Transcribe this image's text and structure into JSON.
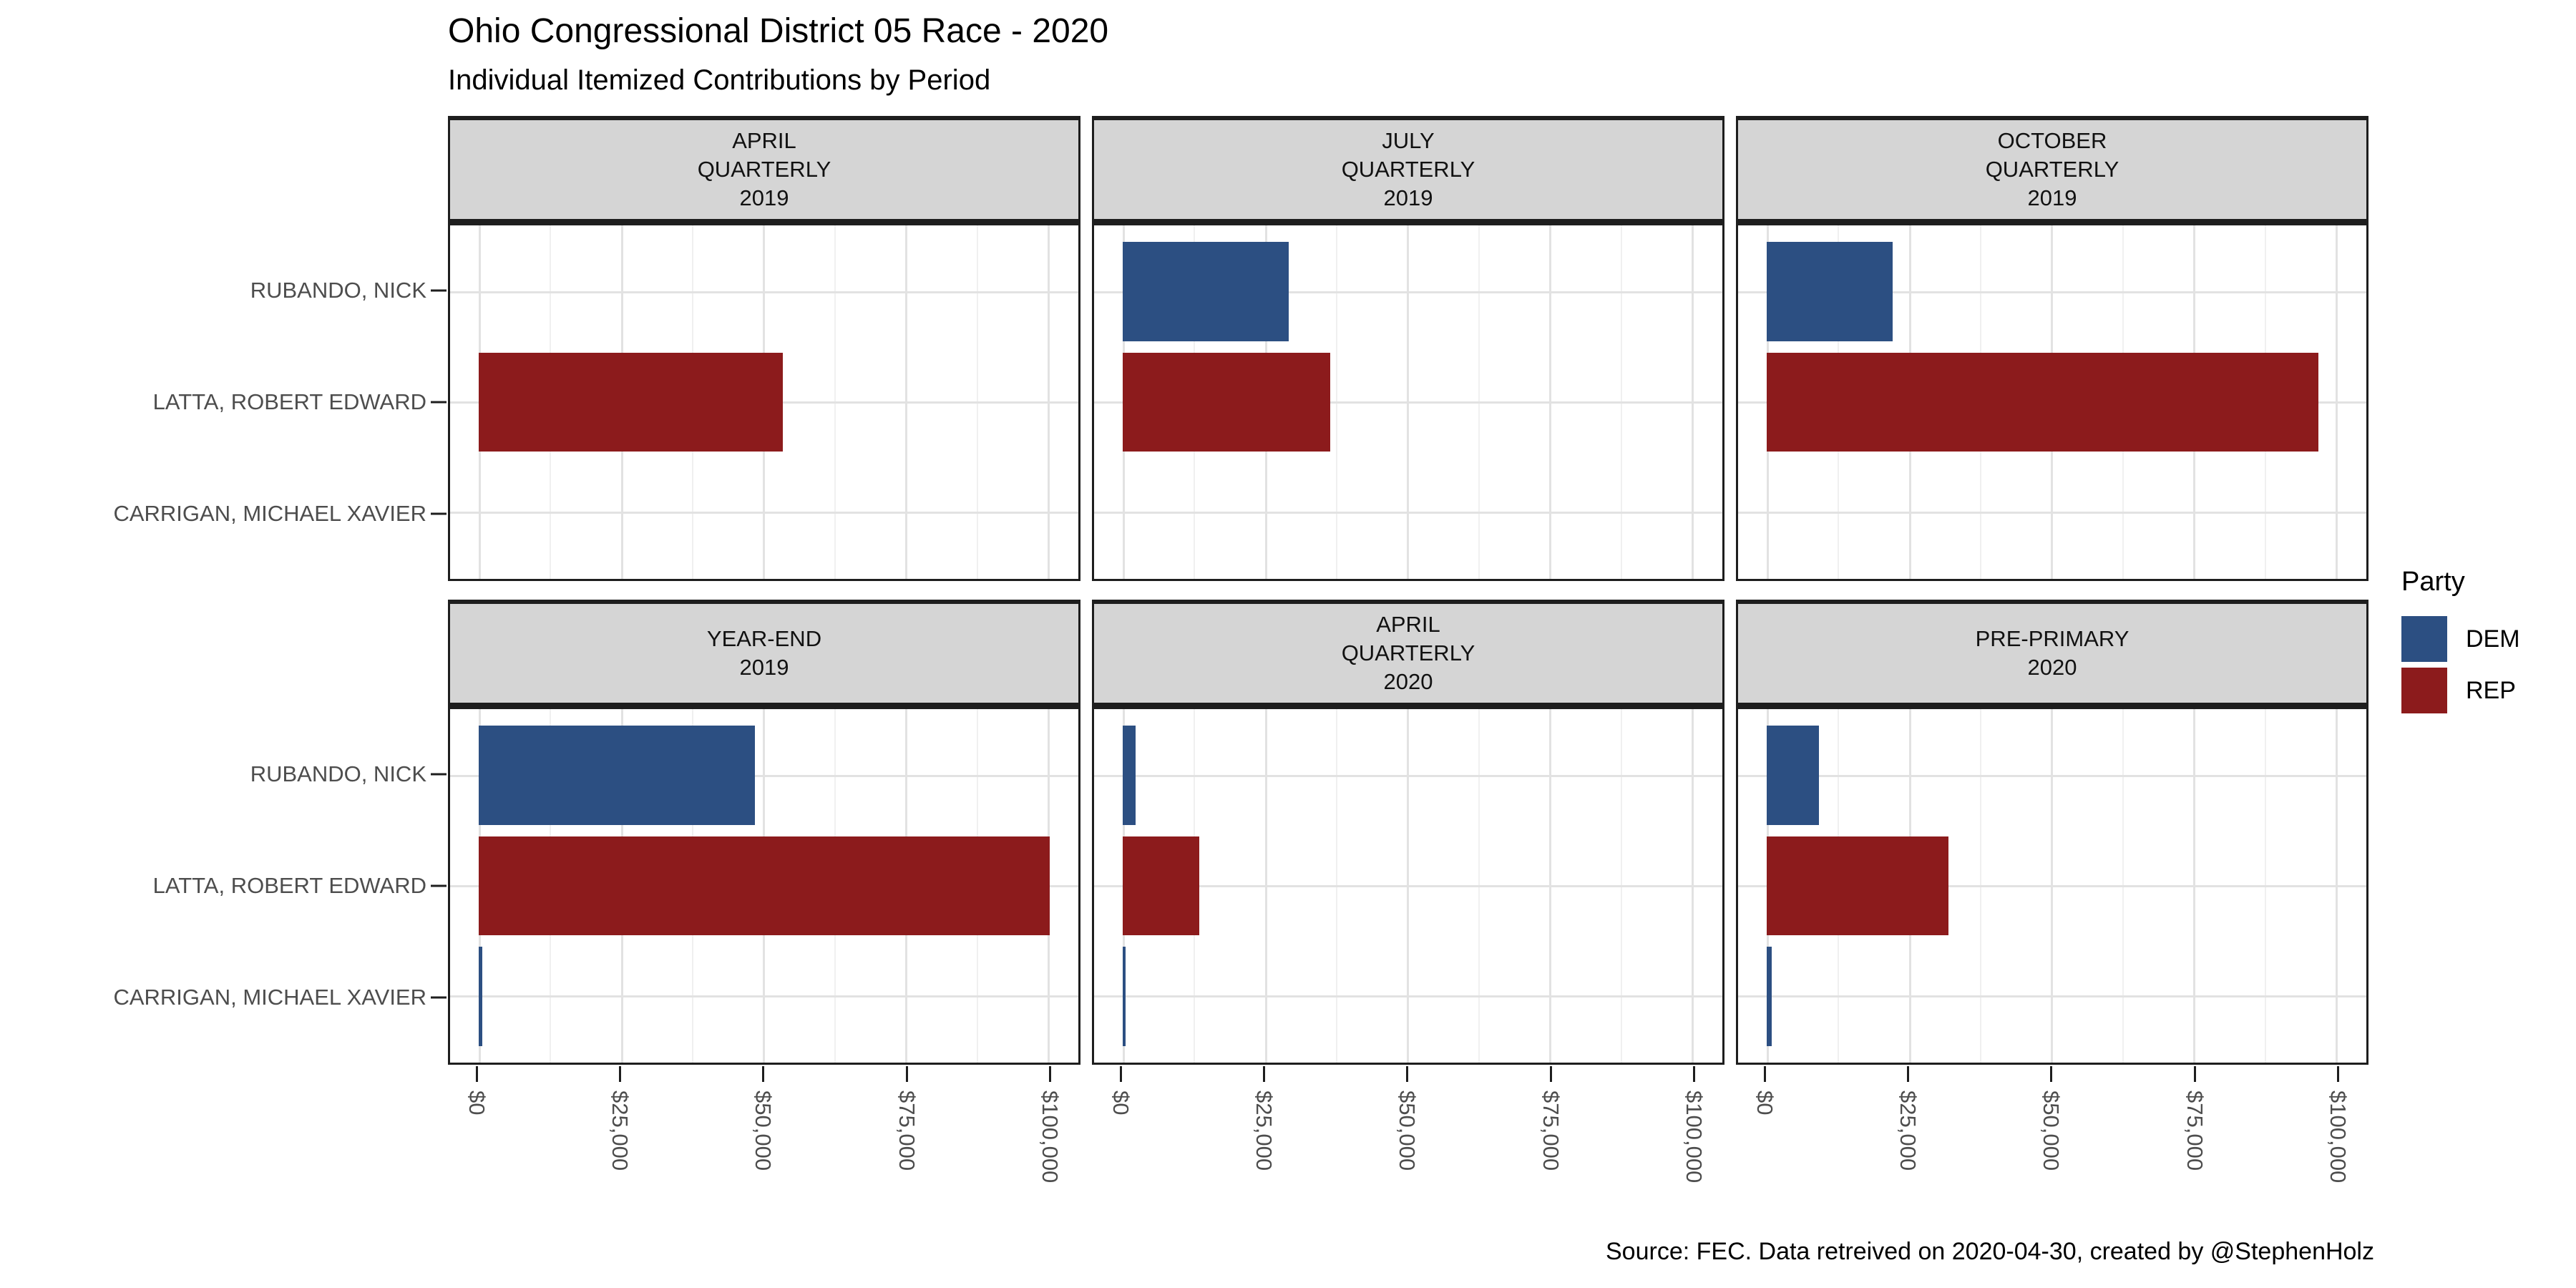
{
  "title": "Ohio Congressional District 05 Race - 2020",
  "subtitle": "Individual Itemized Contributions by Period",
  "caption": "Source: FEC. Data retreived on 2020-04-30, created by @StephenHolz",
  "legend": {
    "title": "Party",
    "items": [
      {
        "label": "DEM",
        "color": "#2C4F82"
      },
      {
        "label": "REP",
        "color": "#8C1B1C"
      }
    ]
  },
  "axis": {
    "x_tick_labels": [
      "$0",
      "$25,000",
      "$50,000",
      "$75,000",
      "$100,000"
    ],
    "x_tick_values": [
      0,
      25000,
      50000,
      75000,
      100000
    ],
    "x_minor_values": [
      12500,
      37500,
      62500,
      87500
    ],
    "y_categories": [
      "RUBANDO, NICK",
      "LATTA, ROBERT EDWARD",
      "CARRIGAN, MICHAEL XAVIER"
    ]
  },
  "chart_data": {
    "type": "bar",
    "orientation": "horizontal",
    "title": "Ohio Congressional District 05 Race - 2020",
    "subtitle": "Individual Itemized Contributions by Period",
    "caption": "Source: FEC. Data retreived on 2020-04-30, created by @StephenHolz",
    "categories": [
      "RUBANDO, NICK",
      "LATTA, ROBERT EDWARD",
      "CARRIGAN, MICHAEL XAVIER"
    ],
    "candidate_parties": {
      "RUBANDO, NICK": "DEM",
      "LATTA, ROBERT EDWARD": "REP",
      "CARRIGAN, MICHAEL XAVIER": "DEM"
    },
    "series_colors": {
      "DEM": "#2C4F82",
      "REP": "#8C1B1C"
    },
    "xlim": [
      0,
      100400
    ],
    "x_expansion": 0.05,
    "grid": true,
    "legend_position": "right",
    "facets": [
      {
        "label_lines": [
          "APRIL",
          "QUARTERLY",
          "2019"
        ],
        "bars": [
          {
            "candidate": "RUBANDO, NICK",
            "party": "DEM",
            "value": 0
          },
          {
            "candidate": "LATTA, ROBERT EDWARD",
            "party": "REP",
            "value": 53500
          },
          {
            "candidate": "CARRIGAN, MICHAEL XAVIER",
            "party": "DEM",
            "value": 0
          }
        ]
      },
      {
        "label_lines": [
          "JULY",
          "QUARTERLY",
          "2019"
        ],
        "bars": [
          {
            "candidate": "RUBANDO, NICK",
            "party": "DEM",
            "value": 29200
          },
          {
            "candidate": "LATTA, ROBERT EDWARD",
            "party": "REP",
            "value": 36500
          },
          {
            "candidate": "CARRIGAN, MICHAEL XAVIER",
            "party": "DEM",
            "value": 0
          }
        ]
      },
      {
        "label_lines": [
          "OCTOBER",
          "QUARTERLY",
          "2019"
        ],
        "bars": [
          {
            "candidate": "RUBANDO, NICK",
            "party": "DEM",
            "value": 22200
          },
          {
            "candidate": "LATTA, ROBERT EDWARD",
            "party": "REP",
            "value": 97000
          },
          {
            "candidate": "CARRIGAN, MICHAEL XAVIER",
            "party": "DEM",
            "value": 0
          }
        ]
      },
      {
        "label_lines": [
          "YEAR-END",
          "2019"
        ],
        "bars": [
          {
            "candidate": "RUBANDO, NICK",
            "party": "DEM",
            "value": 48600
          },
          {
            "candidate": "LATTA, ROBERT EDWARD",
            "party": "REP",
            "value": 100400
          },
          {
            "candidate": "CARRIGAN, MICHAEL XAVIER",
            "party": "DEM",
            "value": 600
          }
        ]
      },
      {
        "label_lines": [
          "APRIL",
          "QUARTERLY",
          "2020"
        ],
        "bars": [
          {
            "candidate": "RUBANDO, NICK",
            "party": "DEM",
            "value": 2300
          },
          {
            "candidate": "LATTA, ROBERT EDWARD",
            "party": "REP",
            "value": 13500
          },
          {
            "candidate": "CARRIGAN, MICHAEL XAVIER",
            "party": "DEM",
            "value": 500
          }
        ]
      },
      {
        "label_lines": [
          "PRE-PRIMARY",
          "2020"
        ],
        "bars": [
          {
            "candidate": "RUBANDO, NICK",
            "party": "DEM",
            "value": 9200
          },
          {
            "candidate": "LATTA, ROBERT EDWARD",
            "party": "REP",
            "value": 32000
          },
          {
            "candidate": "CARRIGAN, MICHAEL XAVIER",
            "party": "DEM",
            "value": 900
          }
        ]
      }
    ]
  }
}
